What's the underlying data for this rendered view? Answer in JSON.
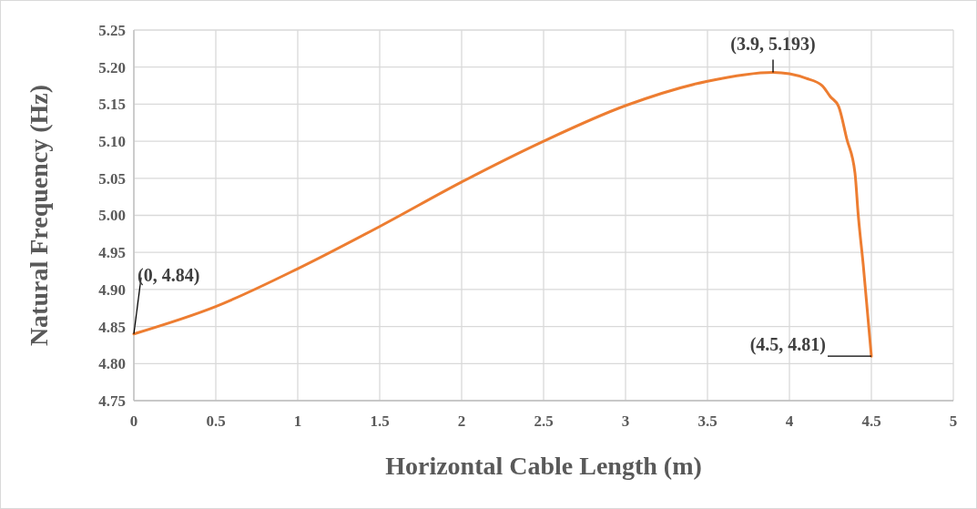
{
  "chart_data": {
    "type": "line",
    "xlabel": "Horizontal Cable Length  (m)",
    "ylabel": "Natural Frequency (Hz)",
    "xlim": [
      0,
      5
    ],
    "xticks": [
      0,
      0.5,
      1,
      1.5,
      2,
      2.5,
      3,
      3.5,
      4,
      4.5,
      5
    ],
    "ylim": [
      4.75,
      5.25
    ],
    "yticks": [
      {
        "value": 4.75,
        "label": "4.75"
      },
      {
        "value": 4.8,
        "label": "4.80"
      },
      {
        "value": 4.85,
        "label": "4.85"
      },
      {
        "value": 4.9,
        "label": "4.90"
      },
      {
        "value": 4.95,
        "label": "4.95"
      },
      {
        "value": 5,
        "label": "5.00"
      },
      {
        "value": 5.05,
        "label": "5.05"
      },
      {
        "value": 5.1,
        "label": "5.10"
      },
      {
        "value": 5.15,
        "label": "5.15"
      },
      {
        "value": 5.2,
        "label": "5.20"
      },
      {
        "value": 5.25,
        "label": "5.25"
      }
    ],
    "grid": true,
    "marker": "none",
    "line_style": "solid",
    "series": [
      {
        "color": "#ed7d31",
        "x": [
          0,
          0.5,
          1,
          1.5,
          2,
          2.5,
          3,
          3.5,
          3.9,
          4,
          4.1,
          4.2,
          4.25,
          4.3,
          4.35,
          4.4,
          4.42,
          4.45,
          4.5
        ],
        "values": [
          4.84,
          4.877,
          4.928,
          4.985,
          5.045,
          5.1,
          5.148,
          5.181,
          5.193,
          5.191,
          5.185,
          5.175,
          5.16,
          5.147,
          5.103,
          5.057,
          5.0,
          4.934,
          4.81
        ]
      }
    ],
    "annotations": [
      {
        "text": "(0, 4.84)",
        "x": 0,
        "y": 4.84
      },
      {
        "text": "(3.9, 5.193)",
        "x": 3.9,
        "y": 5.193
      },
      {
        "text": "(4.5, 4.81)",
        "x": 4.5,
        "y": 4.81
      }
    ]
  }
}
